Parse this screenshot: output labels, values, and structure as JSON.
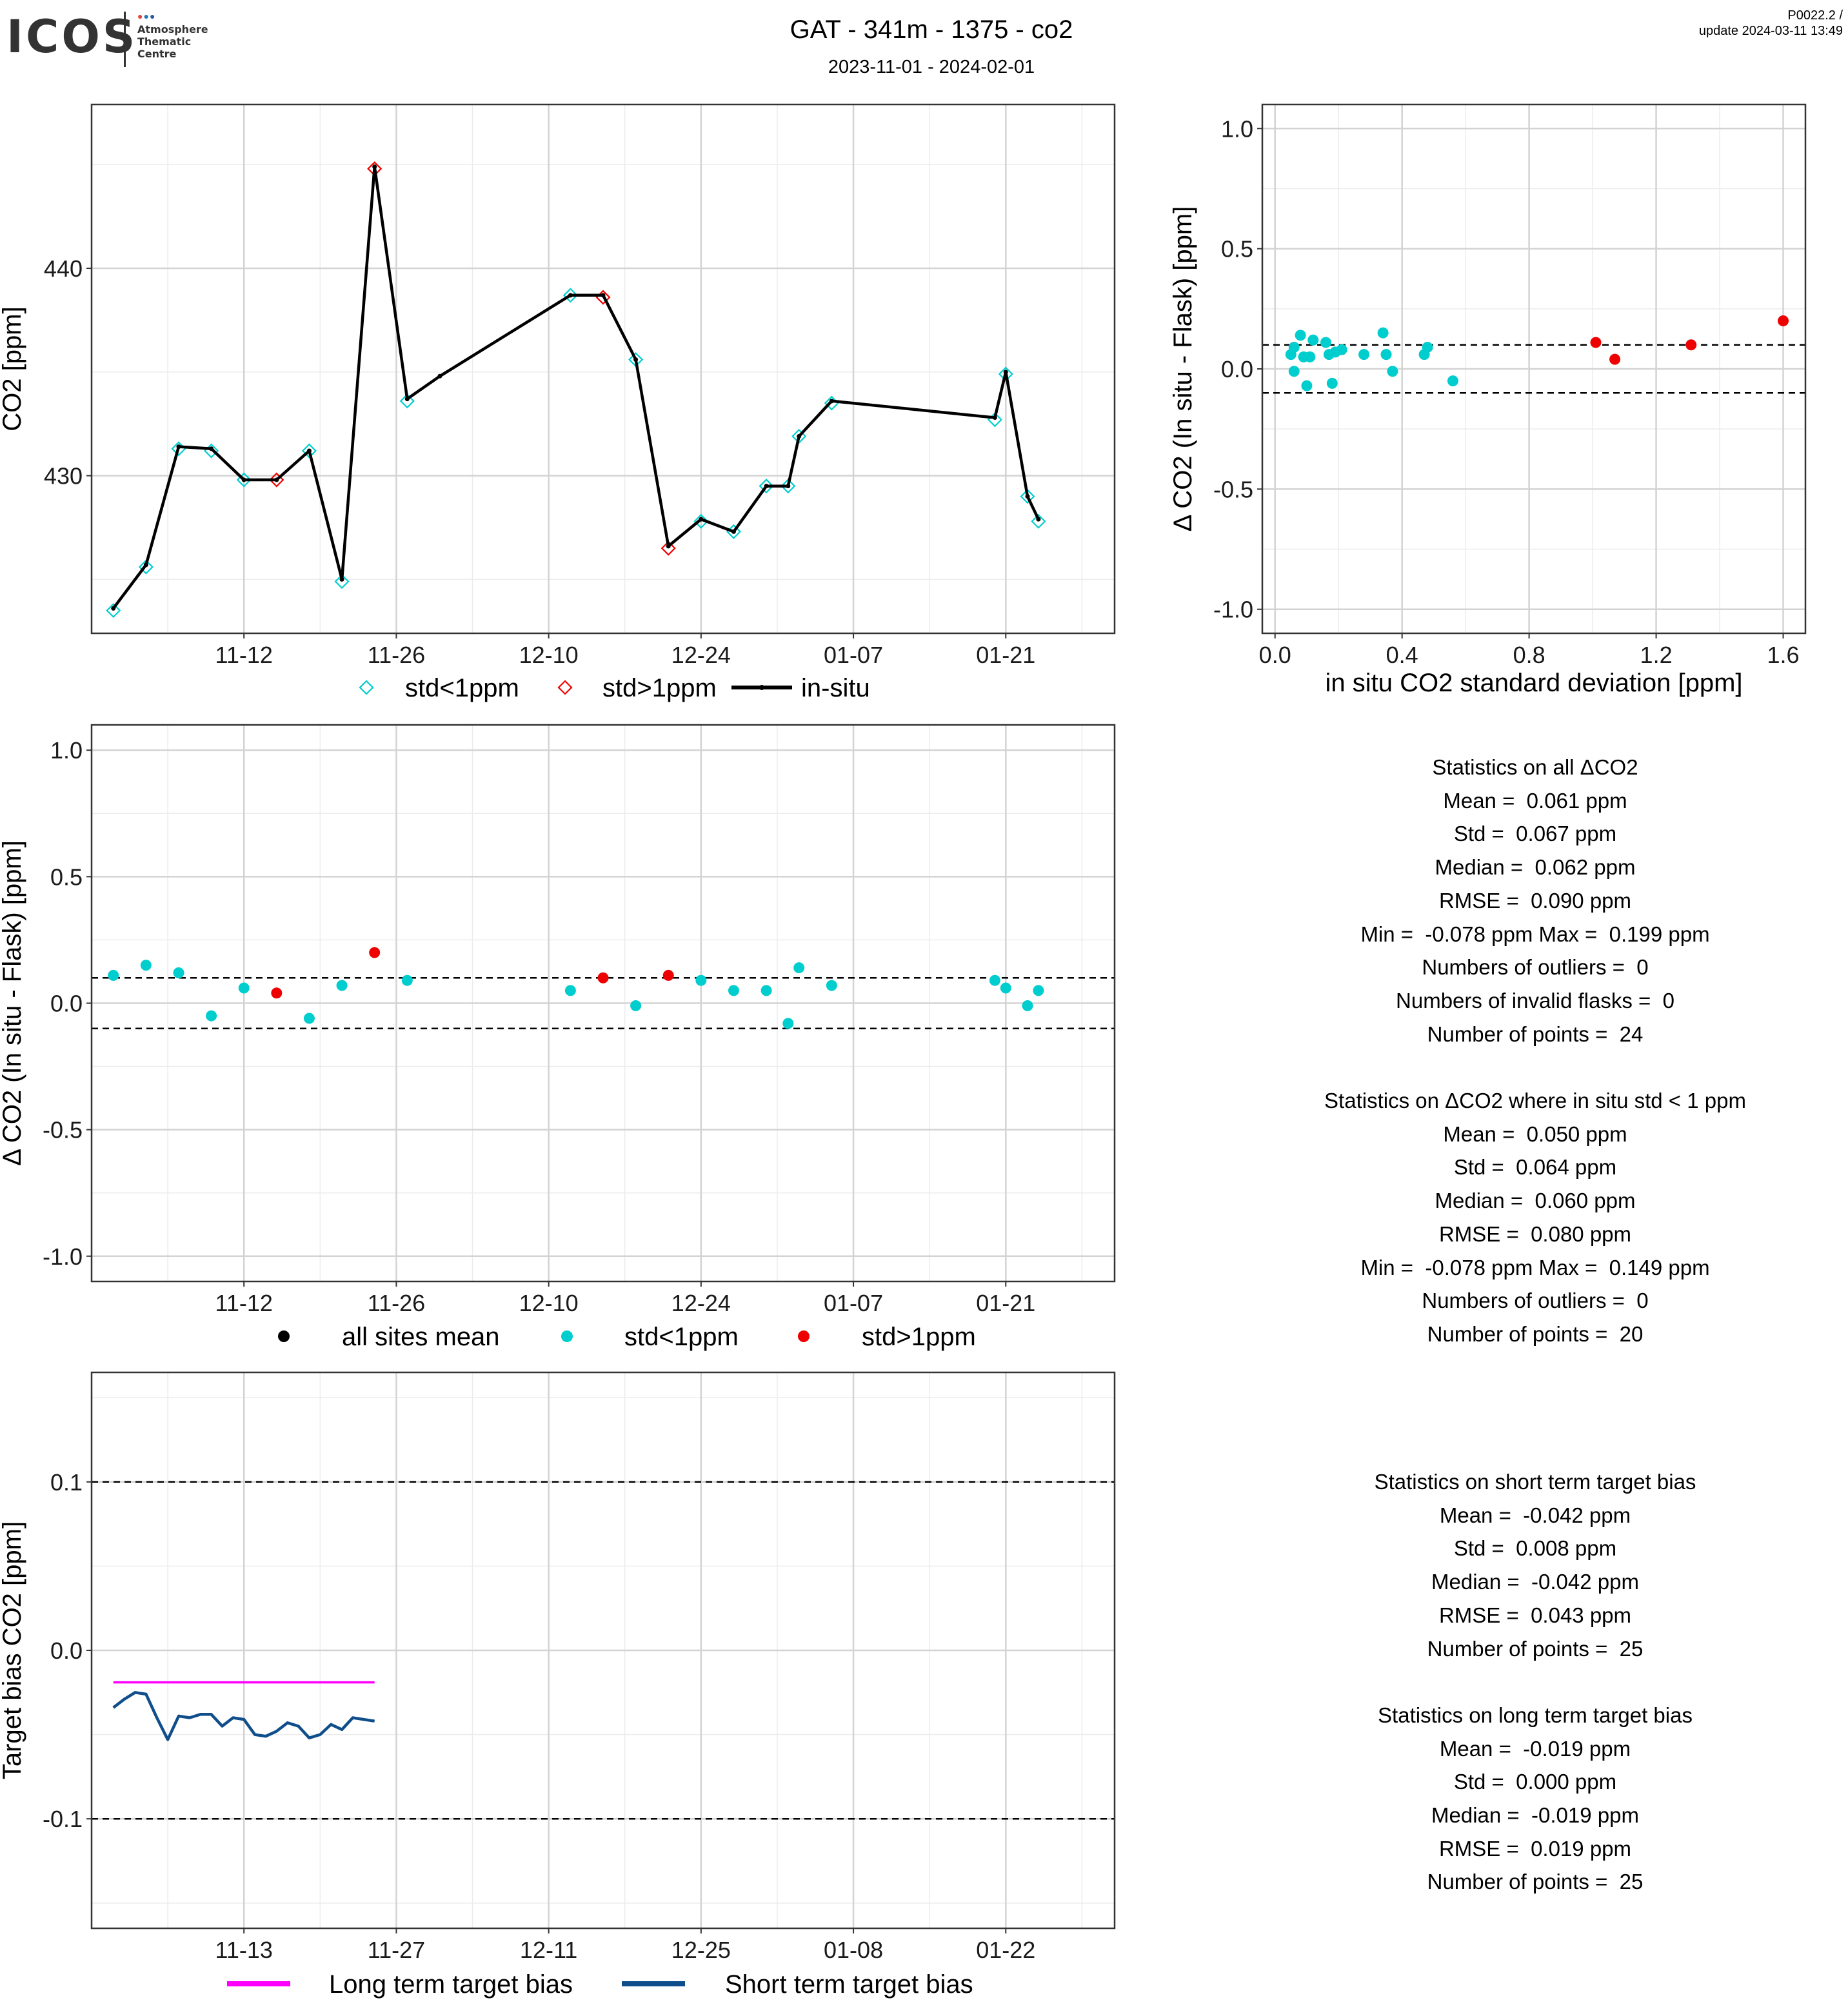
{
  "logo": {
    "text": "ICOS",
    "sub_lines": [
      "Atmosphere",
      "Thematic",
      "Centre"
    ],
    "dot_colors": [
      "#e8413c",
      "#1f78b4",
      "#2a5aa8"
    ]
  },
  "header": {
    "title": "GAT - 341m - 1375 - co2",
    "subtitle": "2023-11-01 - 2024-02-01",
    "right_line1": "P0022.2 /",
    "right_line2": "update  2024-03-11 13:49"
  },
  "colors": {
    "cyan": "#00cdcd",
    "red": "#ee0000",
    "black": "#000000",
    "magenta": "#ff00ff",
    "navy": "#104e8b",
    "grid_major": "#d3d3d3",
    "grid_minor": "#ececec"
  },
  "chart_data": [
    {
      "id": "co2-timeseries",
      "type": "line",
      "xlabel": "",
      "ylabel": "CO2 [ppm]",
      "xlim": [
        "2023-10-29",
        "2024-01-31"
      ],
      "ylim": [
        422.4,
        447.9
      ],
      "x_tick_labels": [
        "11-12",
        "11-26",
        "12-10",
        "12-24",
        "01-07",
        "01-21"
      ],
      "x_ticks": [
        "2023-11-12",
        "2023-11-26",
        "2023-12-10",
        "2023-12-24",
        "2024-01-07",
        "2024-01-21"
      ],
      "y_tick_labels": [
        "430",
        "440"
      ],
      "y_ticks": [
        430,
        440
      ],
      "grid": true,
      "legend_position": "bottom",
      "legend": [
        "std<1ppm",
        "std>1ppm",
        "in-situ"
      ],
      "insitu": {
        "dates": [
          "2023-10-31",
          "2023-11-03",
          "2023-11-06",
          "2023-11-09",
          "2023-11-12",
          "2023-11-15",
          "2023-11-18",
          "2023-11-21",
          "2023-11-24",
          "2023-11-27",
          "2023-11-30",
          "2023-12-12",
          "2023-12-15",
          "2023-12-18",
          "2023-12-21",
          "2023-12-24",
          "2023-12-27",
          "2023-12-30",
          "2024-01-01",
          "2024-01-02",
          "2024-01-05",
          "2024-01-20",
          "2024-01-21",
          "2024-01-23",
          "2024-01-24"
        ],
        "values": [
          423.6,
          425.7,
          431.4,
          431.3,
          429.8,
          429.8,
          431.2,
          425.0,
          444.9,
          433.7,
          434.8,
          438.7,
          438.7,
          435.6,
          426.6,
          427.9,
          427.3,
          429.5,
          429.5,
          431.9,
          433.6,
          432.8,
          435.0,
          429.0,
          427.9
        ]
      },
      "flask": {
        "dates": [
          "2023-10-31",
          "2023-11-03",
          "2023-11-06",
          "2023-11-09",
          "2023-11-12",
          "2023-11-15",
          "2023-11-18",
          "2023-11-21",
          "2023-11-24",
          "2023-11-27",
          "2023-12-12",
          "2023-12-15",
          "2023-12-18",
          "2023-12-21",
          "2023-12-24",
          "2023-12-27",
          "2023-12-30",
          "2024-01-01",
          "2024-01-02",
          "2024-01-05",
          "2024-01-20",
          "2024-01-21",
          "2024-01-23",
          "2024-01-24"
        ],
        "values": [
          423.5,
          425.6,
          431.3,
          431.2,
          429.8,
          429.8,
          431.2,
          424.9,
          444.8,
          433.6,
          438.7,
          438.6,
          435.6,
          426.5,
          427.8,
          427.3,
          429.5,
          429.5,
          431.9,
          433.5,
          432.7,
          434.9,
          429.0,
          427.8
        ],
        "flags": [
          "lo",
          "lo",
          "lo",
          "lo",
          "lo",
          "hi",
          "lo",
          "lo",
          "hi",
          "lo",
          "lo",
          "hi",
          "lo",
          "hi",
          "lo",
          "lo",
          "lo",
          "lo",
          "lo",
          "lo",
          "lo",
          "lo",
          "lo",
          "lo"
        ]
      }
    },
    {
      "id": "delta-vs-std",
      "type": "scatter",
      "xlabel": "in situ CO2 standard deviation [ppm]",
      "ylabel": "Δ CO2 (In situ - Flask) [ppm]",
      "xlim": [
        -0.04,
        1.67
      ],
      "ylim": [
        -1.1,
        1.1
      ],
      "x_tick_labels": [
        "0.0",
        "0.4",
        "0.8",
        "1.2",
        "1.6"
      ],
      "x_ticks": [
        0,
        0.4,
        0.8,
        1.2,
        1.6
      ],
      "y_tick_labels": [
        "-1.0",
        "-0.5",
        "0.0",
        "0.5",
        "1.0"
      ],
      "y_ticks": [
        -1.0,
        -0.5,
        0.0,
        0.5,
        1.0
      ],
      "hlines": [
        0.1,
        -0.1
      ],
      "grid": true,
      "points": [
        {
          "x": 0.05,
          "y": 0.06,
          "f": "lo"
        },
        {
          "x": 0.06,
          "y": 0.09,
          "f": "lo"
        },
        {
          "x": 0.06,
          "y": -0.01,
          "f": "lo"
        },
        {
          "x": 0.08,
          "y": 0.14,
          "f": "lo"
        },
        {
          "x": 0.09,
          "y": 0.05,
          "f": "lo"
        },
        {
          "x": 0.1,
          "y": -0.07,
          "f": "lo"
        },
        {
          "x": 0.11,
          "y": 0.05,
          "f": "lo"
        },
        {
          "x": 0.12,
          "y": 0.12,
          "f": "lo"
        },
        {
          "x": 0.16,
          "y": 0.11,
          "f": "lo"
        },
        {
          "x": 0.17,
          "y": 0.06,
          "f": "lo"
        },
        {
          "x": 0.18,
          "y": -0.06,
          "f": "lo"
        },
        {
          "x": 0.19,
          "y": 0.07,
          "f": "lo"
        },
        {
          "x": 0.21,
          "y": 0.08,
          "f": "lo"
        },
        {
          "x": 0.28,
          "y": 0.06,
          "f": "lo"
        },
        {
          "x": 0.34,
          "y": 0.15,
          "f": "lo"
        },
        {
          "x": 0.35,
          "y": 0.06,
          "f": "lo"
        },
        {
          "x": 0.37,
          "y": -0.01,
          "f": "lo"
        },
        {
          "x": 0.47,
          "y": 0.06,
          "f": "lo"
        },
        {
          "x": 0.48,
          "y": 0.09,
          "f": "lo"
        },
        {
          "x": 0.56,
          "y": -0.05,
          "f": "lo"
        },
        {
          "x": 1.01,
          "y": 0.11,
          "f": "hi"
        },
        {
          "x": 1.07,
          "y": 0.04,
          "f": "hi"
        },
        {
          "x": 1.31,
          "y": 0.1,
          "f": "hi"
        },
        {
          "x": 1.6,
          "y": 0.2,
          "f": "hi"
        }
      ]
    },
    {
      "id": "delta-timeseries",
      "type": "scatter",
      "xlabel": "",
      "ylabel": "Δ CO2 (In situ - Flask) [ppm]",
      "xlim": [
        "2023-10-29",
        "2024-01-31"
      ],
      "ylim": [
        -1.1,
        1.1
      ],
      "x_tick_labels": [
        "11-12",
        "11-26",
        "12-10",
        "12-24",
        "01-07",
        "01-21"
      ],
      "x_ticks": [
        "2023-11-12",
        "2023-11-26",
        "2023-12-10",
        "2023-12-24",
        "2024-01-07",
        "2024-01-21"
      ],
      "y_tick_labels": [
        "-1.0",
        "-0.5",
        "0.0",
        "0.5",
        "1.0"
      ],
      "y_ticks": [
        -1.0,
        -0.5,
        0.0,
        0.5,
        1.0
      ],
      "hlines": [
        0.1,
        -0.1
      ],
      "grid": true,
      "legend_position": "bottom",
      "legend": [
        "all sites mean",
        "std<1ppm",
        "std>1ppm"
      ],
      "points": [
        {
          "date": "2023-10-31",
          "y": 0.11,
          "f": "lo"
        },
        {
          "date": "2023-11-03",
          "y": 0.15,
          "f": "lo"
        },
        {
          "date": "2023-11-06",
          "y": 0.12,
          "f": "lo"
        },
        {
          "date": "2023-11-09",
          "y": -0.05,
          "f": "lo"
        },
        {
          "date": "2023-11-12",
          "y": 0.06,
          "f": "lo"
        },
        {
          "date": "2023-11-15",
          "y": 0.04,
          "f": "hi"
        },
        {
          "date": "2023-11-18",
          "y": -0.06,
          "f": "lo"
        },
        {
          "date": "2023-11-21",
          "y": 0.07,
          "f": "lo"
        },
        {
          "date": "2023-11-24",
          "y": 0.2,
          "f": "hi"
        },
        {
          "date": "2023-11-27",
          "y": 0.09,
          "f": "lo"
        },
        {
          "date": "2023-12-12",
          "y": 0.05,
          "f": "lo"
        },
        {
          "date": "2023-12-15",
          "y": 0.1,
          "f": "hi"
        },
        {
          "date": "2023-12-18",
          "y": -0.01,
          "f": "lo"
        },
        {
          "date": "2023-12-21",
          "y": 0.11,
          "f": "hi"
        },
        {
          "date": "2023-12-24",
          "y": 0.09,
          "f": "lo"
        },
        {
          "date": "2023-12-27",
          "y": 0.05,
          "f": "lo"
        },
        {
          "date": "2023-12-30",
          "y": 0.05,
          "f": "lo"
        },
        {
          "date": "2024-01-01",
          "y": -0.08,
          "f": "lo"
        },
        {
          "date": "2024-01-02",
          "y": 0.14,
          "f": "lo"
        },
        {
          "date": "2024-01-05",
          "y": 0.07,
          "f": "lo"
        },
        {
          "date": "2024-01-20",
          "y": 0.09,
          "f": "lo"
        },
        {
          "date": "2024-01-21",
          "y": 0.06,
          "f": "lo"
        },
        {
          "date": "2024-01-23",
          "y": -0.01,
          "f": "lo"
        },
        {
          "date": "2024-01-24",
          "y": 0.05,
          "f": "lo"
        }
      ]
    },
    {
      "id": "target-bias",
      "type": "line",
      "xlabel": "",
      "ylabel": "Target bias CO2 [ppm]",
      "xlim": [
        "2023-10-30",
        "2024-02-01"
      ],
      "ylim": [
        -0.165,
        0.165
      ],
      "x_tick_labels": [
        "11-13",
        "11-27",
        "12-11",
        "12-25",
        "01-08",
        "01-22"
      ],
      "x_ticks": [
        "2023-11-13",
        "2023-11-27",
        "2023-12-11",
        "2023-12-25",
        "2024-01-08",
        "2024-01-22"
      ],
      "y_tick_labels": [
        "-0.1",
        "0.0",
        "0.1"
      ],
      "y_ticks": [
        -0.1,
        0.0,
        0.1
      ],
      "hlines": [
        0.1,
        -0.1
      ],
      "grid": true,
      "legend_position": "bottom",
      "legend": [
        "Long term target bias",
        "Short term target bias"
      ],
      "x_start": "2023-11-01",
      "x_step_days": 1,
      "long_term": [
        -0.019,
        -0.019,
        -0.019,
        -0.019,
        -0.019,
        -0.019,
        -0.019,
        -0.019,
        -0.019,
        -0.019,
        -0.019,
        -0.019,
        -0.019,
        -0.019,
        -0.019,
        -0.019,
        -0.019,
        -0.019,
        -0.019,
        -0.019,
        -0.019,
        -0.019,
        -0.019,
        -0.019,
        -0.019
      ],
      "short_term": [
        -0.034,
        -0.029,
        -0.025,
        -0.026,
        -0.04,
        -0.053,
        -0.039,
        -0.04,
        -0.038,
        -0.038,
        -0.045,
        -0.04,
        -0.041,
        -0.05,
        -0.051,
        -0.048,
        -0.043,
        -0.045,
        -0.052,
        -0.05,
        -0.044,
        -0.047,
        -0.04,
        -0.041,
        -0.042
      ]
    }
  ],
  "stats_all": [
    "Statistics on all ΔCO2",
    "Mean =  0.061 ppm",
    "Std =  0.067 ppm",
    "Median =  0.062 ppm",
    "RMSE =  0.090 ppm",
    "Min =  -0.078 ppm Max =  0.199 ppm",
    "Numbers of outliers =  0",
    "Numbers of invalid flasks =  0",
    "Number of points =  24",
    "",
    "Statistics on ΔCO2 where in situ std < 1 ppm",
    "Mean =  0.050 ppm",
    "Std =  0.064 ppm",
    "Median =  0.060 ppm",
    "RMSE =  0.080 ppm",
    "Min =  -0.078 ppm Max =  0.149 ppm",
    "Numbers of outliers =  0",
    "Number of points =  20"
  ],
  "stats_target": [
    "Statistics on short term target bias",
    "Mean =  -0.042 ppm",
    "Std =  0.008 ppm",
    "Median =  -0.042 ppm",
    "RMSE =  0.043 ppm",
    "Number of points =  25",
    "",
    "Statistics on long term target bias",
    "Mean =  -0.019 ppm",
    "Std =  0.000 ppm",
    "Median =  -0.019 ppm",
    "RMSE =  0.019 ppm",
    "Number of points =  25"
  ]
}
